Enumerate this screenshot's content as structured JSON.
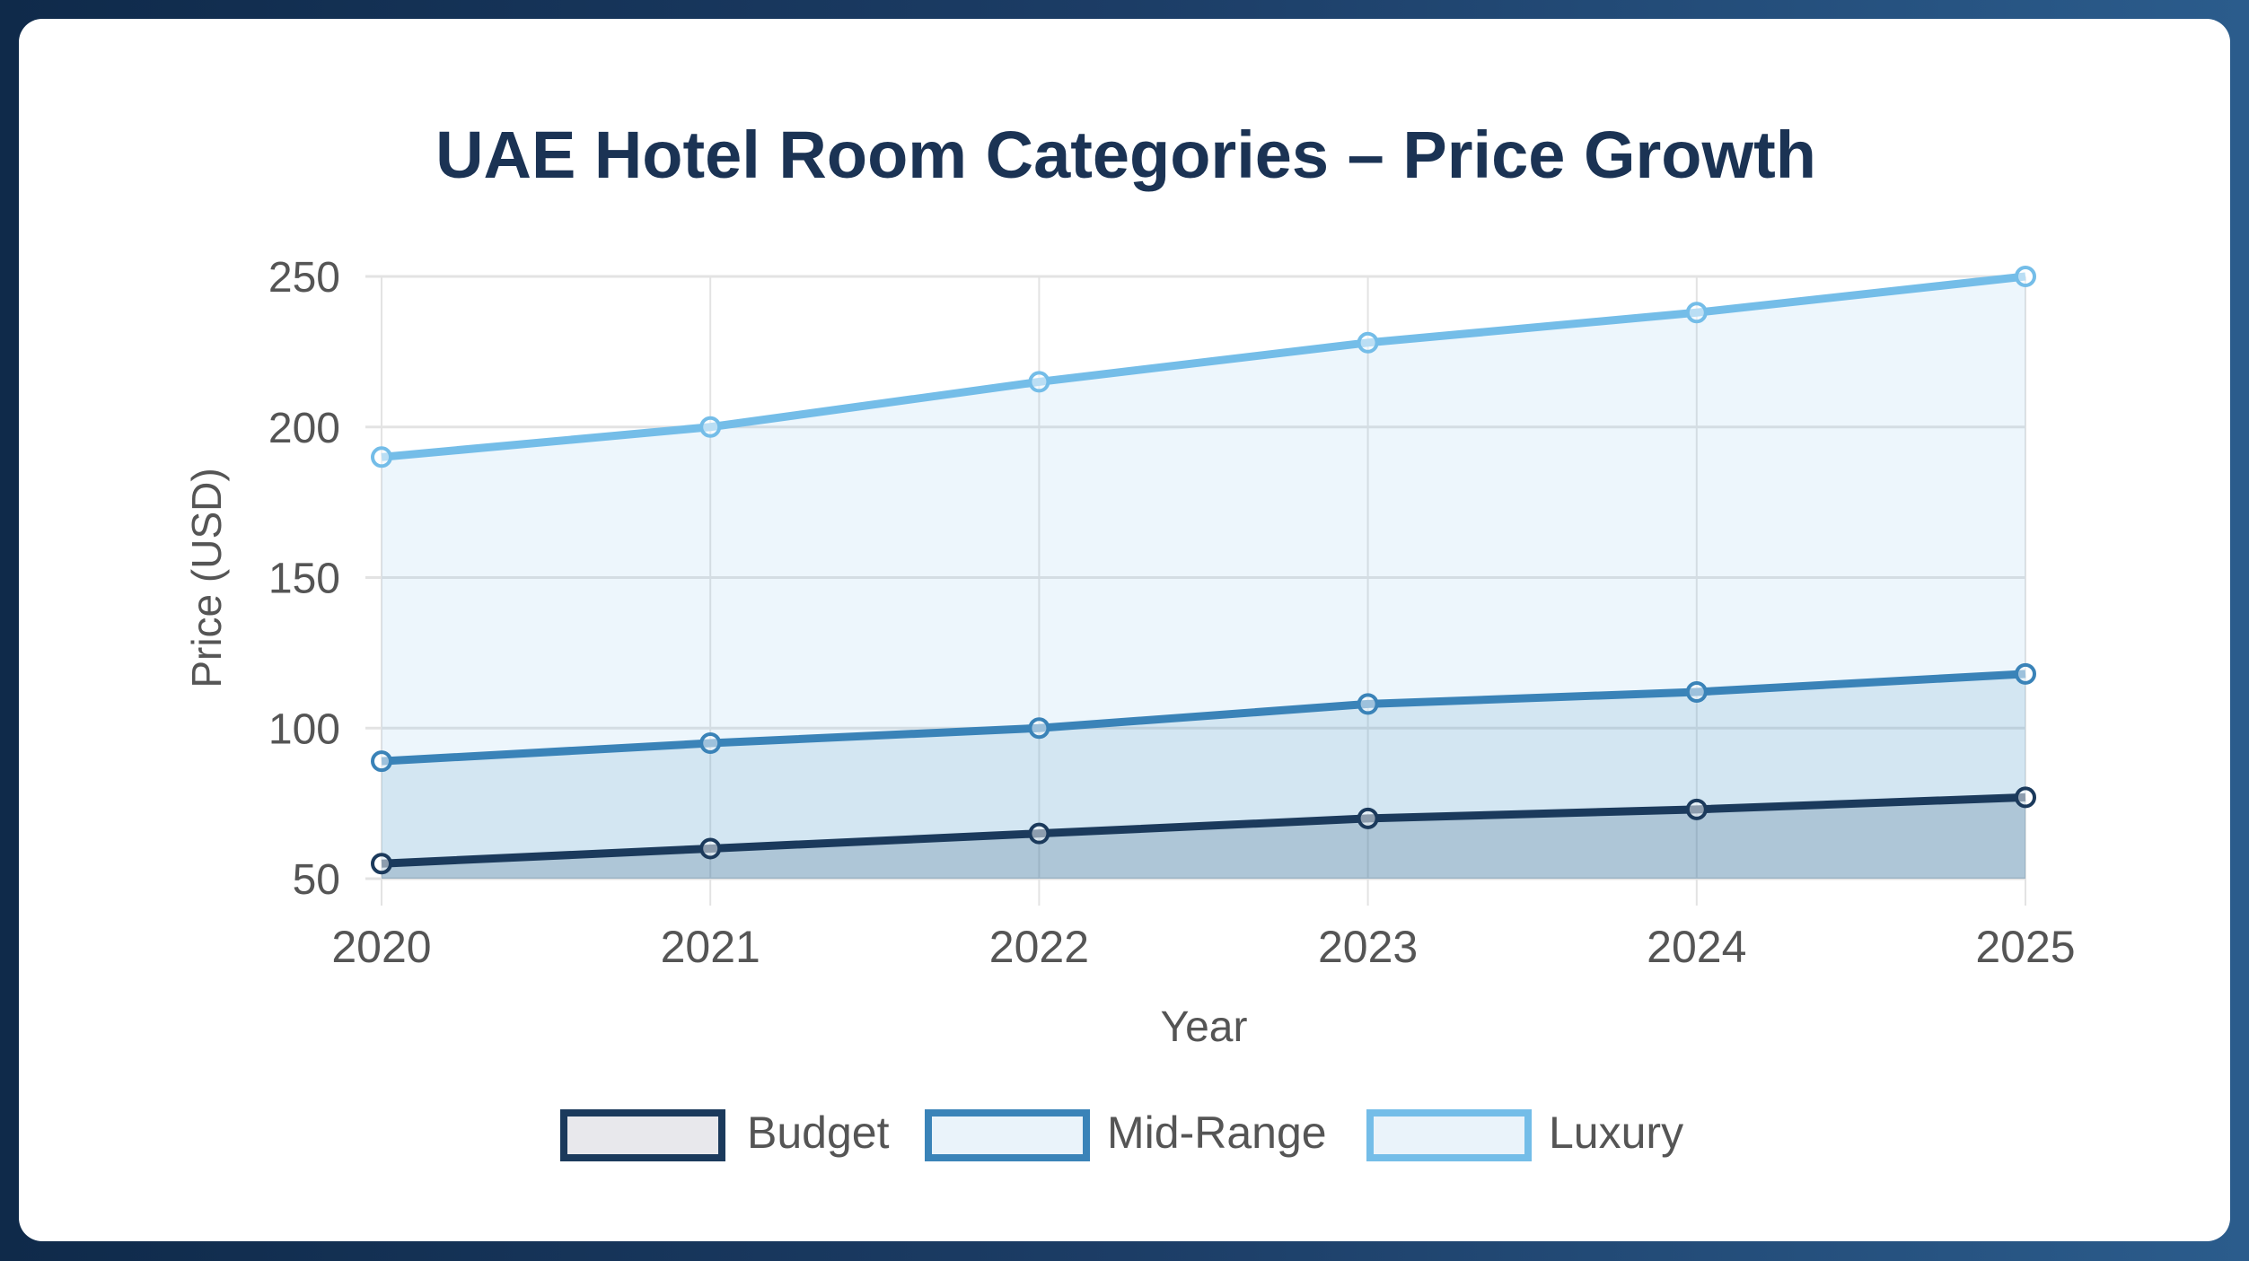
{
  "chart_data": {
    "type": "area",
    "title": "UAE Hotel Room Categories – Price Growth",
    "xlabel": "Year",
    "ylabel": "Price (USD)",
    "categories": [
      "2020",
      "2021",
      "2022",
      "2023",
      "2024",
      "2025"
    ],
    "ylim": [
      50,
      250
    ],
    "yticks": [
      50,
      100,
      150,
      200,
      250
    ],
    "grid": true,
    "legend_position": "bottom",
    "series": [
      {
        "name": "Budget",
        "values": [
          55,
          60,
          65,
          70,
          73,
          77
        ],
        "color": "#1b3a5c",
        "fill": "rgba(27,58,92,0.22)"
      },
      {
        "name": "Mid-Range",
        "values": [
          89,
          95,
          100,
          108,
          112,
          118
        ],
        "color": "#3a83b8",
        "fill": "rgba(58,131,184,0.15)"
      },
      {
        "name": "Luxury",
        "values": [
          190,
          200,
          215,
          228,
          238,
          250
        ],
        "color": "#74bde8",
        "fill": "rgba(116,189,232,0.13)"
      }
    ]
  }
}
